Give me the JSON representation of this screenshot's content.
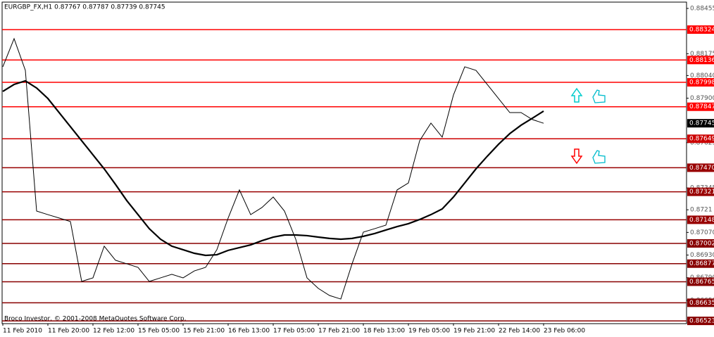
{
  "chart_data": {
    "type": "line",
    "title": "EURGBP_FX,H1  0.87767 0.87787 0.87739 0.87745",
    "footer": "Broco Investor, © 2001-2008 MetaQuotes Software Corp.",
    "categories": [
      "11 Feb 2010",
      null,
      null,
      null,
      "11 Feb 20:00",
      null,
      null,
      null,
      "12 Feb 12:00",
      null,
      null,
      null,
      "15 Feb 05:00",
      null,
      null,
      null,
      "15 Feb 21:00",
      null,
      null,
      null,
      "16 Feb 13:00",
      null,
      null,
      null,
      "17 Feb 05:00",
      null,
      null,
      null,
      "17 Feb 21:00",
      null,
      null,
      null,
      "18 Feb 13:00",
      null,
      null,
      null,
      "19 Feb 05:00",
      null,
      null,
      null,
      "19 Feb 21:00",
      null,
      null,
      null,
      "22 Feb 14:00",
      null,
      null,
      null,
      "23 Feb 06:00"
    ],
    "series": [
      {
        "color": "#000000",
        "width": 1,
        "values": [
          0.88094,
          0.88268,
          0.88072,
          0.87202,
          0.8718,
          0.87159,
          0.87137,
          0.86767,
          0.86789,
          0.86985,
          0.86898,
          0.86876,
          0.86854,
          0.86767,
          0.86789,
          0.86811,
          0.86789,
          0.86832,
          0.86854,
          0.86963,
          0.87159,
          0.87333,
          0.8718,
          0.87224,
          0.87289,
          0.87202,
          0.87028,
          0.86789,
          0.86724,
          0.8668,
          0.86658,
          0.86876,
          0.87072,
          0.87093,
          0.87115,
          0.87333,
          0.87376,
          0.87637,
          0.87746,
          0.87659,
          0.8792,
          0.88094,
          0.88072,
          0.87985,
          0.87898,
          0.87811,
          0.87811,
          0.87768,
          0.87745
        ]
      },
      {
        "color": "#000000",
        "width": 2.2,
        "values": [
          0.87942,
          0.87985,
          0.88007,
          0.87963,
          0.87898,
          0.87811,
          0.87724,
          0.87637,
          0.8755,
          0.87463,
          0.87367,
          0.87267,
          0.8718,
          0.87093,
          0.87028,
          0.86985,
          0.86963,
          0.86941,
          0.86928,
          0.86932,
          0.86959,
          0.86976,
          0.86993,
          0.87019,
          0.87041,
          0.87054,
          0.87054,
          0.8705,
          0.87041,
          0.87033,
          0.87028,
          0.87033,
          0.87046,
          0.87063,
          0.87085,
          0.87106,
          0.87124,
          0.8715,
          0.8718,
          0.87215,
          0.87289,
          0.87376,
          0.87463,
          0.87541,
          0.87615,
          0.87681,
          0.87733,
          0.87776,
          0.8782
        ]
      }
    ],
    "ylim": [
      0.86506,
      0.88494
    ],
    "yticks": [
      0.88455,
      0.88175,
      {
        "value": 0.8804,
        "label": "0.88040"
      },
      {
        "value": 0.879,
        "label": "0.87900"
      },
      0.87625,
      0.87345,
      0.8721,
      {
        "value": 0.8707,
        "label": "0.87070"
      },
      {
        "value": 0.8693,
        "label": "0.86930"
      },
      {
        "value": 0.8679,
        "label": "0.86790"
      },
      {
        "value": 0.8665,
        "label": "0.86650"
      }
    ],
    "levels": [
      {
        "value": 0.88324,
        "color": "#ff0000"
      },
      {
        "value": 0.88136,
        "color": "#ff0000"
      },
      {
        "value": {
          "value": 0.87998,
          "label": "0.87998"
        },
        "color": "#ff0000"
      },
      {
        "value": 0.87847,
        "color": "#ff0000"
      },
      {
        "value": 0.87649,
        "color": "#cc0000"
      },
      {
        "value": {
          "value": 0.8747,
          "label": "0.87470"
        },
        "color": "#990000"
      },
      {
        "value": 0.87321,
        "color": "#990000"
      },
      {
        "value": 0.87148,
        "color": "#990000"
      },
      {
        "value": 0.87002,
        "color": "#880000"
      },
      {
        "value": 0.86877,
        "color": "#880000"
      },
      {
        "value": 0.86765,
        "color": "#880000"
      },
      {
        "value": 0.86635,
        "color": "#880000"
      },
      {
        "value": 0.86523,
        "color": "#880000"
      }
    ],
    "current_price": 0.87745
  }
}
